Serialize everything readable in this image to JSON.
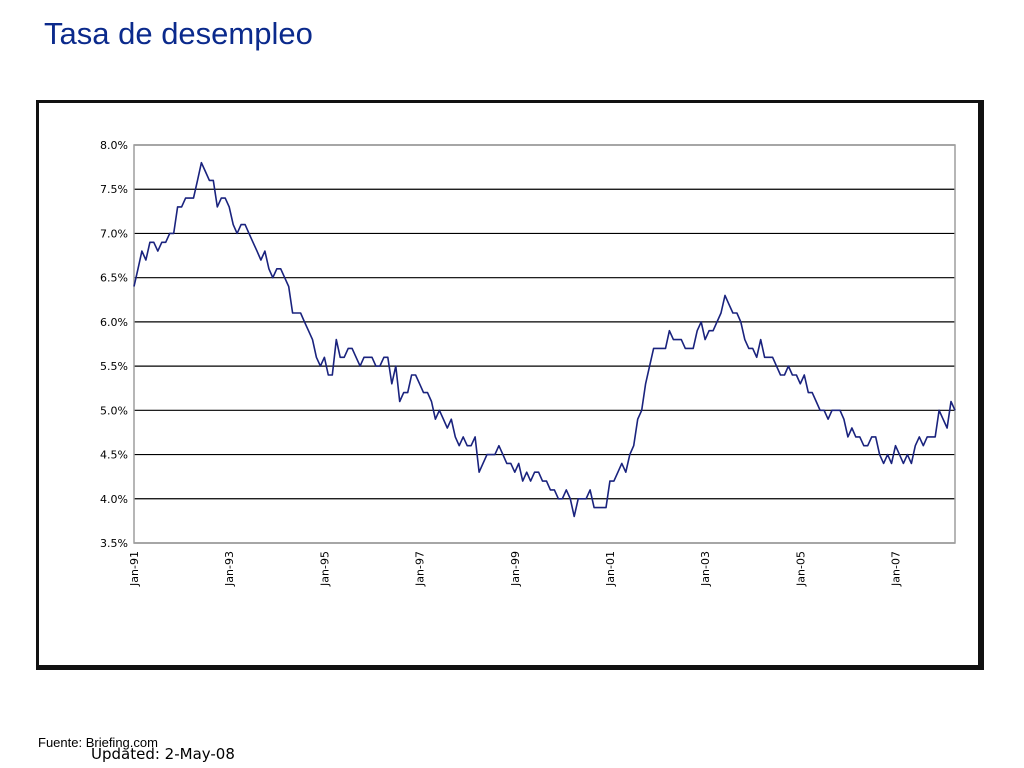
{
  "page": {
    "title": "Tasa de desempleo",
    "updated": "Updated: 2-May-08",
    "source": "Fuente: Briefing.com"
  },
  "colors": {
    "title": "#0b2a8c",
    "line": "#1a237e",
    "grid": "#000000"
  },
  "chart_data": {
    "type": "line",
    "title": "",
    "xlabel": "",
    "ylabel": "",
    "y_unit": "percent",
    "ylim": [
      3.5,
      8.0
    ],
    "yticks": [
      3.5,
      4.0,
      4.5,
      5.0,
      5.5,
      6.0,
      6.5,
      7.0,
      7.5,
      8.0
    ],
    "ytick_labels": [
      "3.5%",
      "4.0%",
      "4.5%",
      "5.0%",
      "5.5%",
      "6.0%",
      "6.5%",
      "7.0%",
      "7.5%",
      "8.0%"
    ],
    "xlim": [
      "1991-01",
      "2008-04"
    ],
    "xticks": [
      "Jan-91",
      "Jan-93",
      "Jan-95",
      "Jan-97",
      "Jan-99",
      "Jan-01",
      "Jan-03",
      "Jan-05",
      "Jan-07"
    ],
    "grid": "horizontal",
    "legend": "none",
    "series": [
      {
        "x": [
          "1991-01",
          "1991-02",
          "1991-03",
          "1991-04",
          "1991-05",
          "1991-06",
          "1991-07",
          "1991-08",
          "1991-09",
          "1991-10",
          "1991-11",
          "1991-12",
          "1992-01",
          "1992-02",
          "1992-03",
          "1992-04",
          "1992-05",
          "1992-06",
          "1992-07",
          "1992-08",
          "1992-09",
          "1992-10",
          "1992-11",
          "1992-12",
          "1993-01",
          "1993-02",
          "1993-03",
          "1993-04",
          "1993-05",
          "1993-06",
          "1993-07",
          "1993-08",
          "1993-09",
          "1993-10",
          "1993-11",
          "1993-12",
          "1994-01",
          "1994-02",
          "1994-03",
          "1994-04",
          "1994-05",
          "1994-06",
          "1994-07",
          "1994-08",
          "1994-09",
          "1994-10",
          "1994-11",
          "1994-12",
          "1995-01",
          "1995-02",
          "1995-03",
          "1995-04",
          "1995-05",
          "1995-06",
          "1995-07",
          "1995-08",
          "1995-09",
          "1995-10",
          "1995-11",
          "1995-12",
          "1996-01",
          "1996-02",
          "1996-03",
          "1996-04",
          "1996-05",
          "1996-06",
          "1996-07",
          "1996-08",
          "1996-09",
          "1996-10",
          "1996-11",
          "1996-12",
          "1997-01",
          "1997-02",
          "1997-03",
          "1997-04",
          "1997-05",
          "1997-06",
          "1997-07",
          "1997-08",
          "1997-09",
          "1997-10",
          "1997-11",
          "1997-12",
          "1998-01",
          "1998-02",
          "1998-03",
          "1998-04",
          "1998-05",
          "1998-06",
          "1998-07",
          "1998-08",
          "1998-09",
          "1998-10",
          "1998-11",
          "1998-12",
          "1999-01",
          "1999-02",
          "1999-03",
          "1999-04",
          "1999-05",
          "1999-06",
          "1999-07",
          "1999-08",
          "1999-09",
          "1999-10",
          "1999-11",
          "1999-12",
          "2000-01",
          "2000-02",
          "2000-03",
          "2000-04",
          "2000-05",
          "2000-06",
          "2000-07",
          "2000-08",
          "2000-09",
          "2000-10",
          "2000-11",
          "2000-12",
          "2001-01",
          "2001-02",
          "2001-03",
          "2001-04",
          "2001-05",
          "2001-06",
          "2001-07",
          "2001-08",
          "2001-09",
          "2001-10",
          "2001-11",
          "2001-12",
          "2002-01",
          "2002-02",
          "2002-03",
          "2002-04",
          "2002-05",
          "2002-06",
          "2002-07",
          "2002-08",
          "2002-09",
          "2002-10",
          "2002-11",
          "2002-12",
          "2003-01",
          "2003-02",
          "2003-03",
          "2003-04",
          "2003-05",
          "2003-06",
          "2003-07",
          "2003-08",
          "2003-09",
          "2003-10",
          "2003-11",
          "2003-12",
          "2004-01",
          "2004-02",
          "2004-03",
          "2004-04",
          "2004-05",
          "2004-06",
          "2004-07",
          "2004-08",
          "2004-09",
          "2004-10",
          "2004-11",
          "2004-12",
          "2005-01",
          "2005-02",
          "2005-03",
          "2005-04",
          "2005-05",
          "2005-06",
          "2005-07",
          "2005-08",
          "2005-09",
          "2005-10",
          "2005-11",
          "2005-12",
          "2006-01",
          "2006-02",
          "2006-03",
          "2006-04",
          "2006-05",
          "2006-06",
          "2006-07",
          "2006-08",
          "2006-09",
          "2006-10",
          "2006-11",
          "2006-12",
          "2007-01",
          "2007-02",
          "2007-03",
          "2007-04",
          "2007-05",
          "2007-06",
          "2007-07",
          "2007-08",
          "2007-09",
          "2007-10",
          "2007-11",
          "2007-12",
          "2008-01",
          "2008-02",
          "2008-03",
          "2008-04"
        ],
        "y": [
          6.4,
          6.6,
          6.8,
          6.7,
          6.9,
          6.9,
          6.8,
          6.9,
          6.9,
          7.0,
          7.0,
          7.3,
          7.3,
          7.4,
          7.4,
          7.4,
          7.6,
          7.8,
          7.7,
          7.6,
          7.6,
          7.3,
          7.4,
          7.4,
          7.3,
          7.1,
          7.0,
          7.1,
          7.1,
          7.0,
          6.9,
          6.8,
          6.7,
          6.8,
          6.6,
          6.5,
          6.6,
          6.6,
          6.5,
          6.4,
          6.1,
          6.1,
          6.1,
          6.0,
          5.9,
          5.8,
          5.6,
          5.5,
          5.6,
          5.4,
          5.4,
          5.8,
          5.6,
          5.6,
          5.7,
          5.7,
          5.6,
          5.5,
          5.6,
          5.6,
          5.6,
          5.5,
          5.5,
          5.6,
          5.6,
          5.3,
          5.5,
          5.1,
          5.2,
          5.2,
          5.4,
          5.4,
          5.3,
          5.2,
          5.2,
          5.1,
          4.9,
          5.0,
          4.9,
          4.8,
          4.9,
          4.7,
          4.6,
          4.7,
          4.6,
          4.6,
          4.7,
          4.3,
          4.4,
          4.5,
          4.5,
          4.5,
          4.6,
          4.5,
          4.4,
          4.4,
          4.3,
          4.4,
          4.2,
          4.3,
          4.2,
          4.3,
          4.3,
          4.2,
          4.2,
          4.1,
          4.1,
          4.0,
          4.0,
          4.1,
          4.0,
          3.8,
          4.0,
          4.0,
          4.0,
          4.1,
          3.9,
          3.9,
          3.9,
          3.9,
          4.2,
          4.2,
          4.3,
          4.4,
          4.3,
          4.5,
          4.6,
          4.9,
          5.0,
          5.3,
          5.5,
          5.7,
          5.7,
          5.7,
          5.7,
          5.9,
          5.8,
          5.8,
          5.8,
          5.7,
          5.7,
          5.7,
          5.9,
          6.0,
          5.8,
          5.9,
          5.9,
          6.0,
          6.1,
          6.3,
          6.2,
          6.1,
          6.1,
          6.0,
          5.8,
          5.7,
          5.7,
          5.6,
          5.8,
          5.6,
          5.6,
          5.6,
          5.5,
          5.4,
          5.4,
          5.5,
          5.4,
          5.4,
          5.3,
          5.4,
          5.2,
          5.2,
          5.1,
          5.0,
          5.0,
          4.9,
          5.0,
          5.0,
          5.0,
          4.9,
          4.7,
          4.8,
          4.7,
          4.7,
          4.6,
          4.6,
          4.7,
          4.7,
          4.5,
          4.4,
          4.5,
          4.4,
          4.6,
          4.5,
          4.4,
          4.5,
          4.4,
          4.6,
          4.7,
          4.6,
          4.7,
          4.7,
          4.7,
          5.0,
          4.9,
          4.8,
          5.1,
          5.0
        ]
      }
    ]
  }
}
